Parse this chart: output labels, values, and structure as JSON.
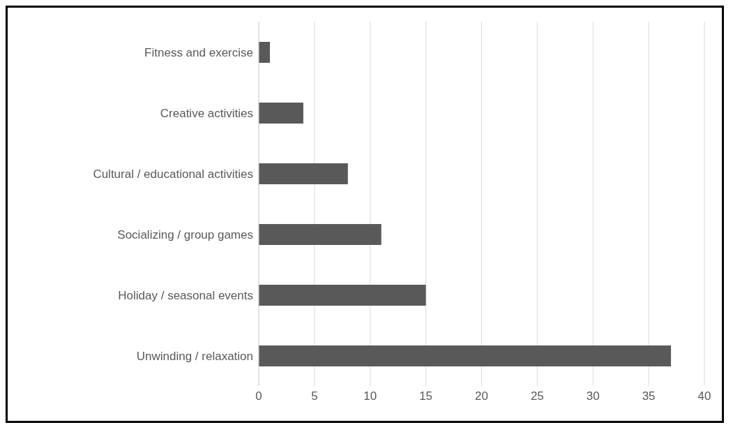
{
  "chart_data": {
    "type": "bar",
    "orientation": "horizontal",
    "categories": [
      "Fitness and exercise",
      "Creative activities",
      "Cultural / educational activities",
      "Socializing / group games",
      "Holiday / seasonal events",
      "Unwinding / relaxation"
    ],
    "values": [
      1,
      4,
      8,
      11,
      15,
      37
    ],
    "color": "#595959",
    "xlim": [
      0,
      40
    ],
    "xticks": [
      0,
      5,
      10,
      15,
      20,
      25,
      30,
      35,
      40
    ],
    "grid": "x"
  }
}
